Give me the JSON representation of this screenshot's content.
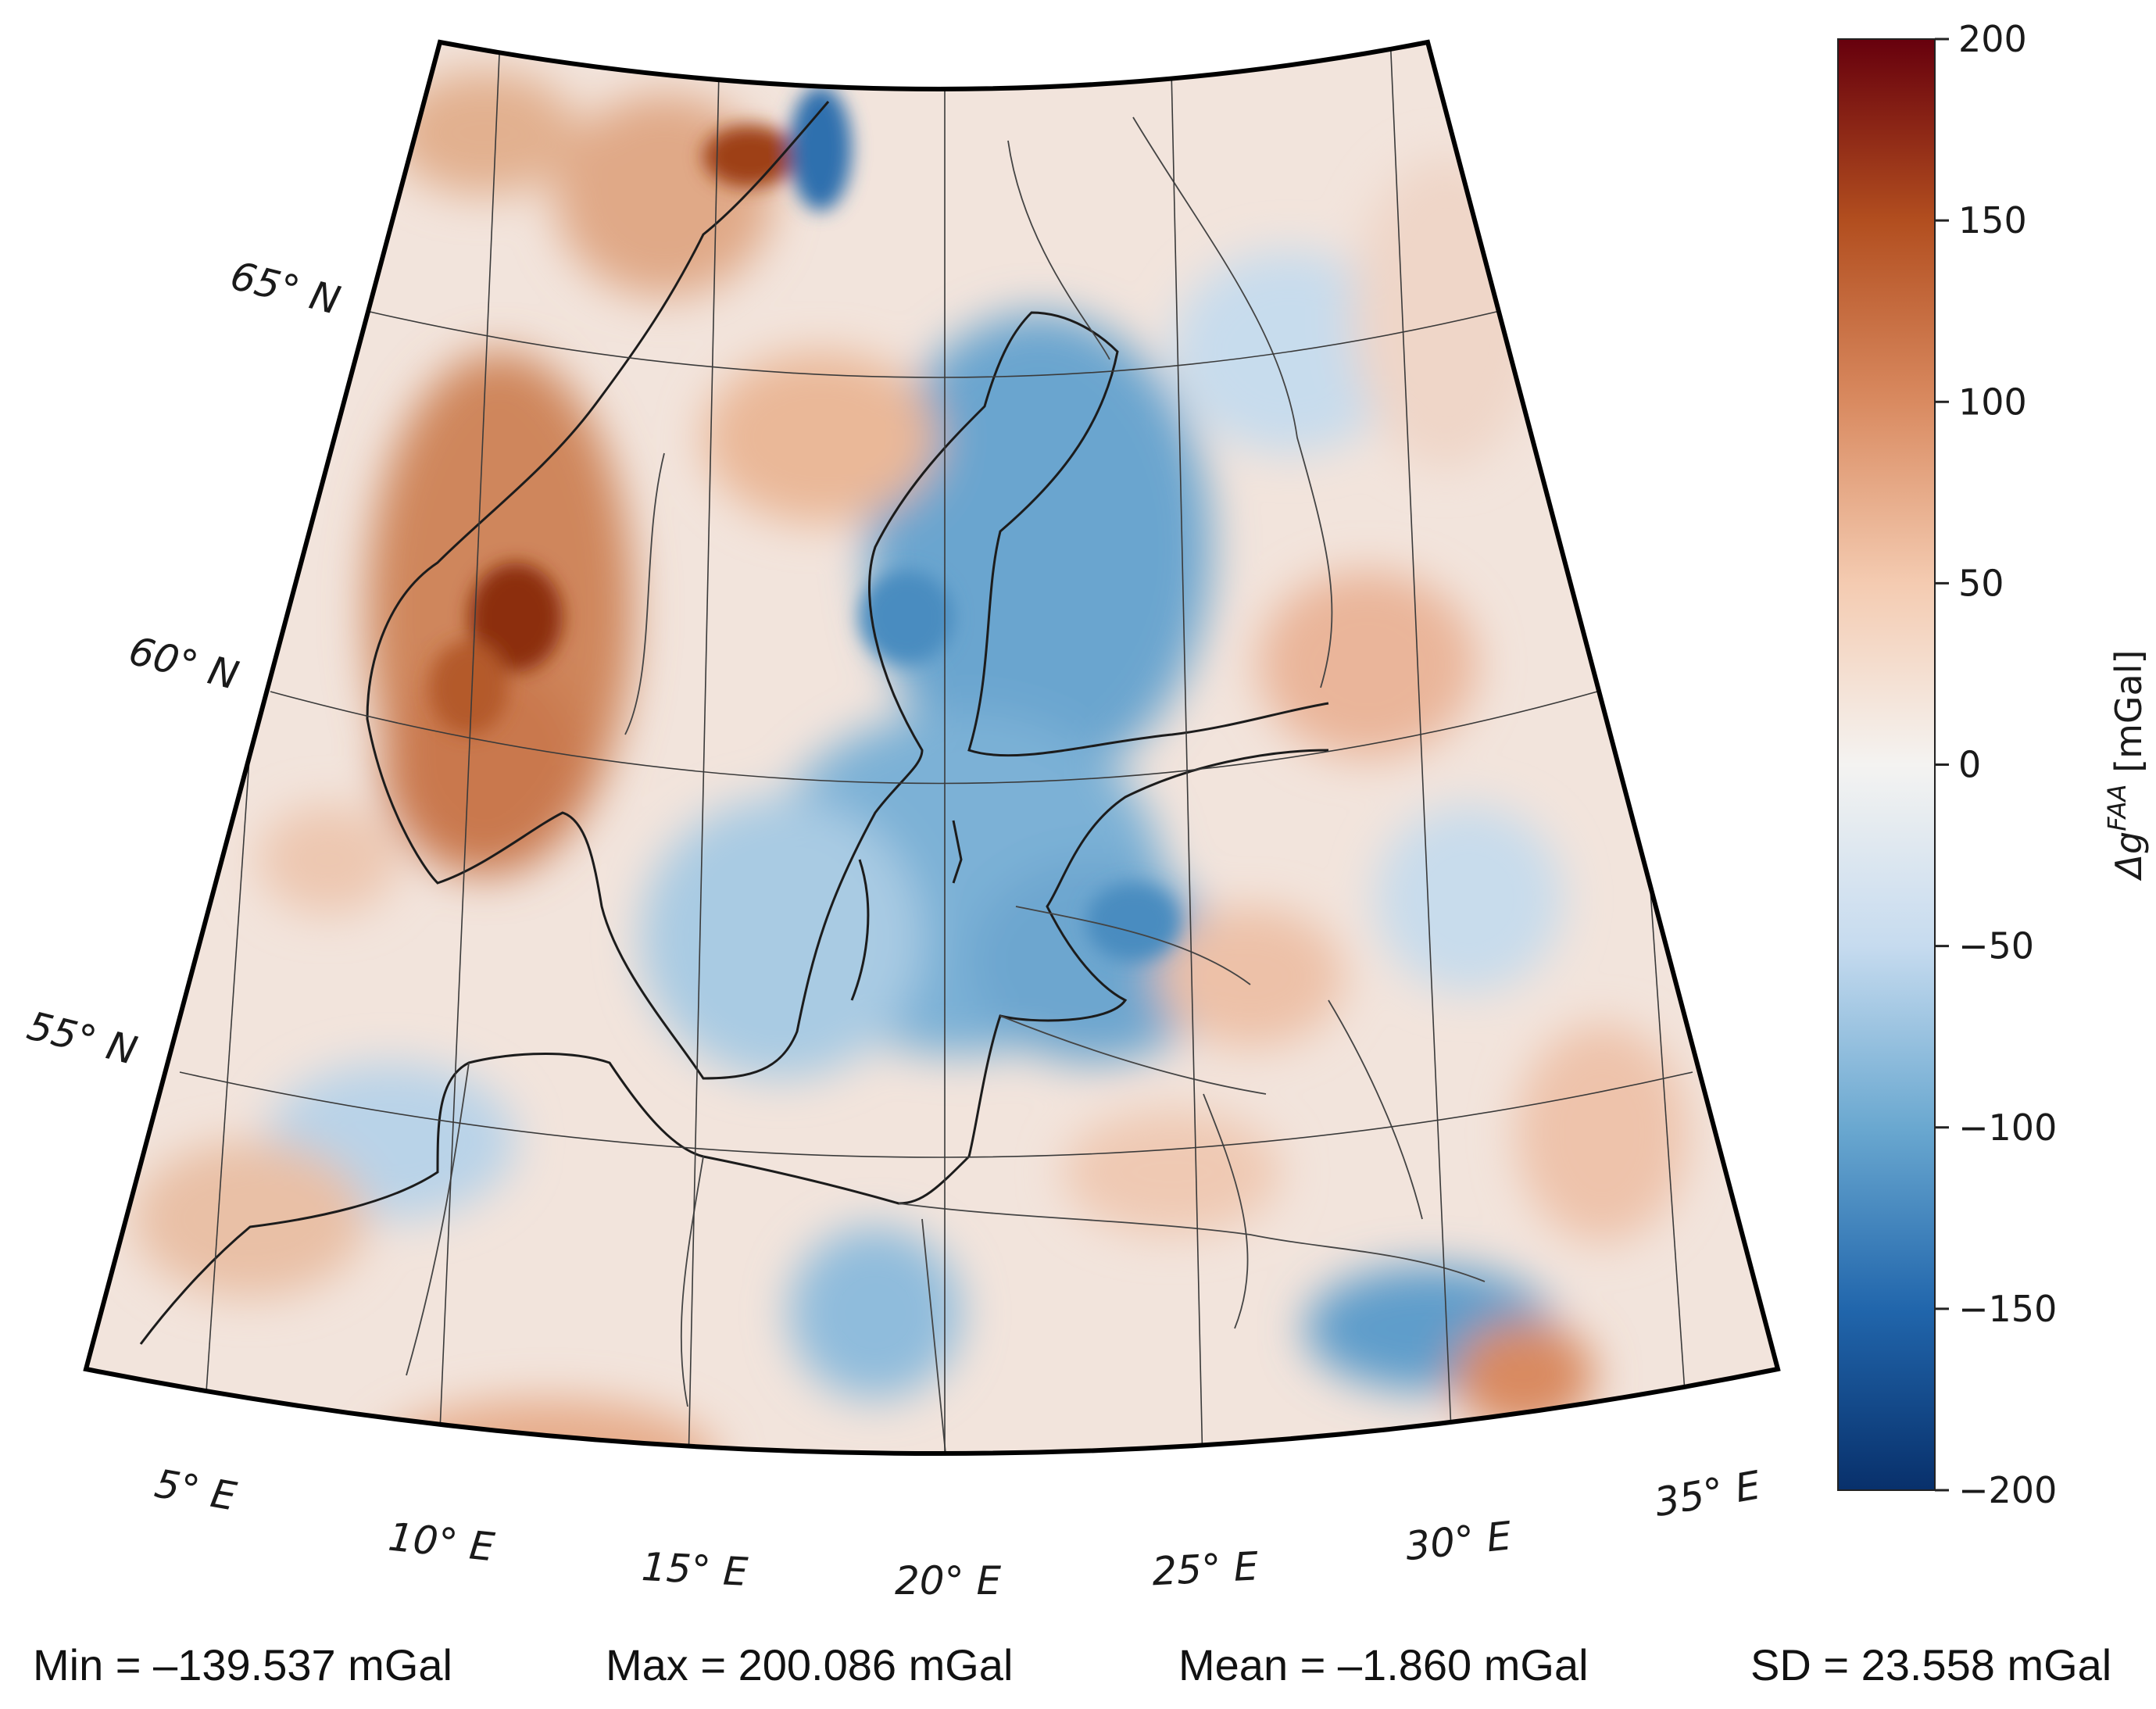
{
  "chart_data": {
    "type": "heatmap",
    "projection": "conic",
    "lat_labels": [
      "65° N",
      "60° N",
      "55° N"
    ],
    "lon_labels": [
      "5° E",
      "10° E",
      "15° E",
      "20° E",
      "25° E",
      "30° E",
      "35° E"
    ],
    "colorbar": {
      "label": "Δg^FAA [mGal]",
      "symbol": "Δg",
      "superscript": "FAA",
      "unit": "[mGal]",
      "range": [
        -200,
        200
      ],
      "ticks": [
        "200",
        "150",
        "100",
        "50",
        "0",
        "−50",
        "−100",
        "−150",
        "−200"
      ],
      "colormap": [
        "#08306b",
        "#2166ac",
        "#6aa8d0",
        "#c6dbef",
        "#f4f3f1",
        "#f4cbb1",
        "#d98a60",
        "#b24e1f",
        "#67000d"
      ]
    },
    "stats": {
      "min": "Min = –139.537 mGal",
      "max": "Max = 200.086 mGal",
      "mean": "Mean = –1.860 mGal",
      "sd": "SD = 23.558 mGal"
    },
    "grid": true
  }
}
